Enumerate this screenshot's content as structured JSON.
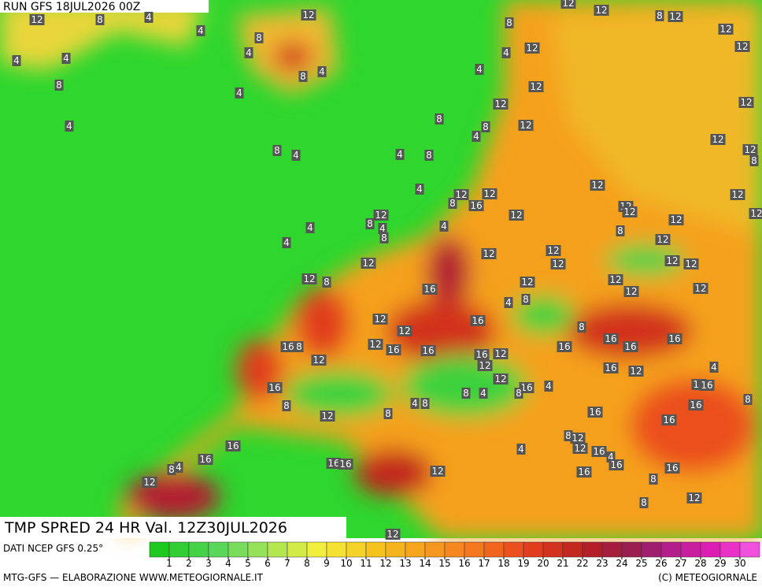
{
  "header": {
    "run": "RUN GFS 18JUL2026 00Z",
    "title": "TMP SPRED 24 HR Val. 12Z30JUL2026"
  },
  "footer": {
    "source": "DATI NCEP GFS 0.25°",
    "credit": "MTG-GFS — ELABORAZIONE WWW.METEOGIORNALE.IT",
    "copyright": "(C) METEOGIORNALE"
  },
  "legend": {
    "ticks": [
      1,
      2,
      3,
      4,
      5,
      6,
      7,
      8,
      9,
      10,
      11,
      12,
      13,
      14,
      15,
      16,
      17,
      18,
      19,
      20,
      21,
      22,
      23,
      24,
      25,
      26,
      27,
      28,
      29,
      30
    ],
    "colors": [
      "#1ec81e",
      "#32cd32",
      "#46d246",
      "#5ad75a",
      "#78dc5a",
      "#96e15a",
      "#b4e650",
      "#d2eb46",
      "#f0f03c",
      "#f5e132",
      "#f5d228",
      "#f5c31e",
      "#f5b41e",
      "#f5a51e",
      "#f5961e",
      "#f5871e",
      "#f5781e",
      "#f0641e",
      "#eb501e",
      "#e13c1e",
      "#d2321e",
      "#c3281e",
      "#b41e28",
      "#a51e3c",
      "#9b1e50",
      "#a01e6e",
      "#b41e8c",
      "#c81ea0",
      "#dc1eb4",
      "#eb32c8",
      "#f050dc"
    ]
  },
  "map_labels": [
    12,
    8,
    4,
    4,
    8,
    4,
    12,
    4,
    4,
    8,
    4,
    8,
    4,
    4,
    8,
    4,
    12,
    12,
    8,
    12,
    12,
    12,
    8,
    12,
    4,
    4,
    12,
    12,
    12,
    8,
    8,
    4,
    12,
    12,
    12,
    8,
    4,
    8,
    4,
    12,
    12,
    8,
    16,
    12,
    12,
    12,
    12,
    8,
    4,
    8,
    4,
    12,
    12,
    12,
    12,
    8,
    12,
    4,
    4,
    12,
    12,
    12,
    12,
    12,
    12,
    12,
    8,
    12,
    12,
    16,
    12,
    12,
    4,
    8,
    12,
    16,
    8,
    12,
    12,
    16,
    16,
    16,
    16,
    16,
    16,
    16,
    8,
    12,
    16,
    12,
    12,
    16,
    12,
    4,
    16,
    12,
    16,
    4,
    8,
    8,
    4,
    12,
    16,
    8,
    8,
    12,
    8,
    4,
    8,
    16,
    16,
    16,
    8,
    12,
    12,
    16,
    4,
    16,
    16,
    4,
    16,
    16,
    4,
    8,
    12,
    16,
    16,
    16,
    8,
    12,
    12,
    8,
    12
  ]
}
